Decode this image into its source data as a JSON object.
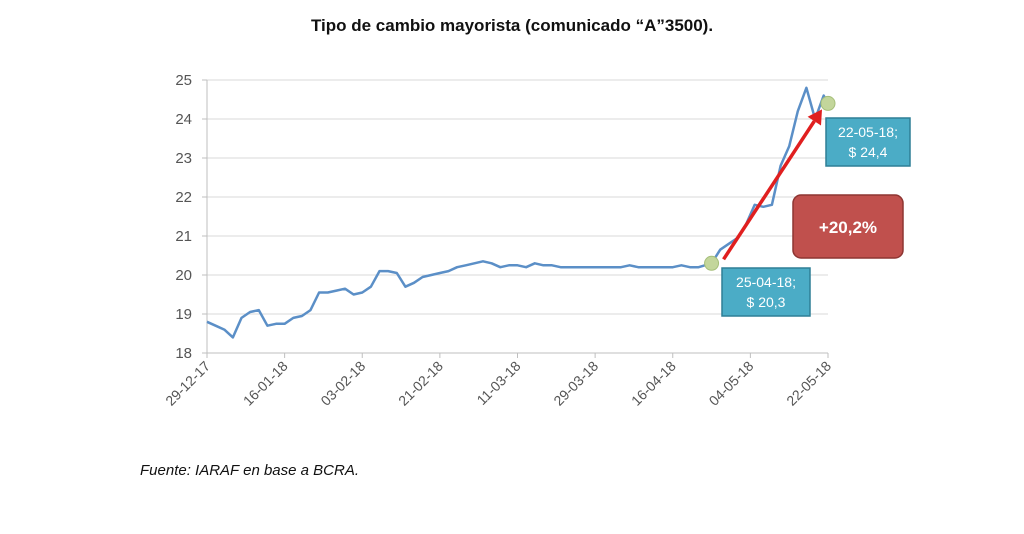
{
  "title": "Tipo de cambio mayorista (comunicado “A”3500).",
  "source": "Fuente: IARAF en base a BCRA.",
  "colors": {
    "line": "#5b8fc7",
    "grid": "#d9d9d9",
    "axis": "#bfbfbf",
    "arrow": "#e01f1f",
    "callout_fill": "#4bacc6",
    "callout_border": "#2e7f96",
    "pct_fill": "#c0504d",
    "marker": "#c3d69b"
  },
  "chart_data": {
    "type": "line",
    "title": "Tipo de cambio mayorista (comunicado “A”3500).",
    "xlabel": "",
    "ylabel": "",
    "ylim": [
      18,
      25
    ],
    "yticks": [
      18,
      19,
      20,
      21,
      22,
      23,
      24,
      25
    ],
    "xticks": [
      "29-12-17",
      "16-01-18",
      "03-02-18",
      "21-02-18",
      "11-03-18",
      "29-03-18",
      "16-04-18",
      "04-05-18",
      "22-05-18"
    ],
    "grid": "horizontal",
    "legend": "none",
    "series": [
      {
        "x": [
          "29-12-17",
          "31-12-17",
          "02-01-18",
          "04-01-18",
          "06-01-18",
          "08-01-18",
          "10-01-18",
          "12-01-18",
          "14-01-18",
          "16-01-18",
          "18-01-18",
          "20-01-18",
          "22-01-18",
          "24-01-18",
          "26-01-18",
          "28-01-18",
          "30-01-18",
          "01-02-18",
          "03-02-18",
          "05-02-18",
          "07-02-18",
          "09-02-18",
          "11-02-18",
          "13-02-18",
          "15-02-18",
          "17-02-18",
          "19-02-18",
          "21-02-18",
          "23-02-18",
          "25-02-18",
          "27-02-18",
          "01-03-18",
          "03-03-18",
          "05-03-18",
          "07-03-18",
          "09-03-18",
          "11-03-18",
          "13-03-18",
          "15-03-18",
          "17-03-18",
          "19-03-18",
          "21-03-18",
          "23-03-18",
          "25-03-18",
          "27-03-18",
          "29-03-18",
          "31-03-18",
          "02-04-18",
          "04-04-18",
          "06-04-18",
          "08-04-18",
          "10-04-18",
          "12-04-18",
          "14-04-18",
          "16-04-18",
          "18-04-18",
          "20-04-18",
          "22-04-18",
          "25-04-18",
          "27-04-18",
          "29-04-18",
          "01-05-18",
          "03-05-18",
          "05-05-18",
          "07-05-18",
          "09-05-18",
          "11-05-18",
          "13-05-18",
          "15-05-18",
          "17-05-18",
          "19-05-18",
          "21-05-18",
          "22-05-18"
        ],
        "values": [
          18.8,
          18.7,
          18.6,
          18.4,
          18.9,
          19.05,
          19.1,
          18.7,
          18.75,
          18.75,
          18.9,
          18.95,
          19.1,
          19.55,
          19.55,
          19.6,
          19.65,
          19.5,
          19.55,
          19.7,
          20.1,
          20.1,
          20.05,
          19.7,
          19.8,
          19.95,
          20.0,
          20.05,
          20.1,
          20.2,
          20.25,
          20.3,
          20.35,
          20.3,
          20.2,
          20.25,
          20.25,
          20.2,
          20.3,
          20.25,
          20.25,
          20.2,
          20.2,
          20.2,
          20.2,
          20.2,
          20.2,
          20.2,
          20.2,
          20.25,
          20.2,
          20.2,
          20.2,
          20.2,
          20.2,
          20.25,
          20.2,
          20.2,
          20.3,
          20.65,
          20.8,
          20.95,
          21.3,
          21.8,
          21.75,
          21.8,
          22.8,
          23.3,
          24.2,
          24.8,
          24.0,
          24.6,
          24.4
        ]
      }
    ],
    "annotations": [
      {
        "label_line1": "25-04-18;",
        "label_line2": "$ 20,3",
        "x": "25-04-18",
        "y": 20.3
      },
      {
        "label_line1": "22-05-18;",
        "label_line2": "$ 24,4",
        "x": "22-05-18",
        "y": 24.4
      },
      {
        "label": "+20,2%"
      }
    ]
  }
}
